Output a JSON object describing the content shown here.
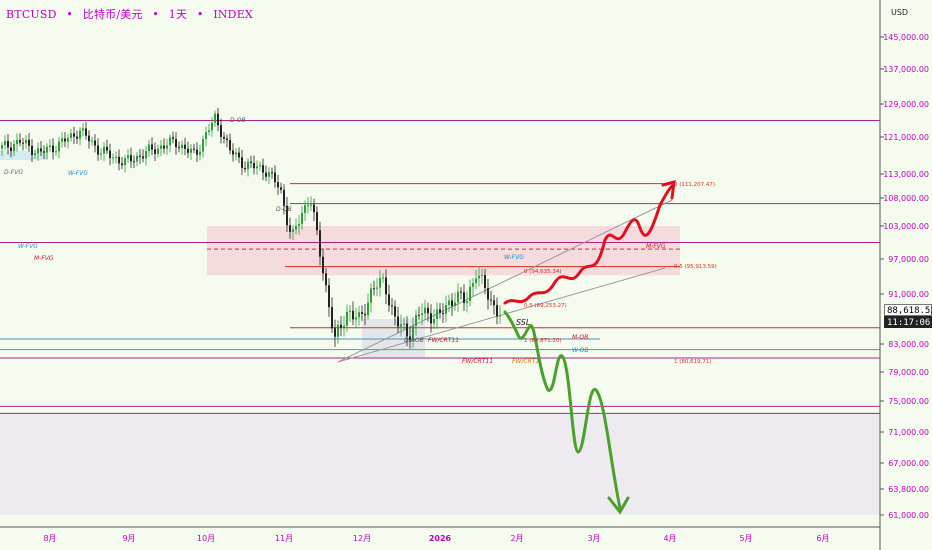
{
  "header": {
    "symbol": "BTCUSD",
    "name": "比特币/美元",
    "interval": "1天",
    "source": "INDEX",
    "separator": "•"
  },
  "currency": "USD",
  "last_price": "88,618.52",
  "countdown": "11:17:06",
  "colors": {
    "bg": "#f6fbf0",
    "up": "#2e9e3a",
    "down": "#222222",
    "bull_path": "#e01020",
    "bear_path": "#4aa02c",
    "axis_text": "#c000c0",
    "price_text": "#c000c0",
    "fib": "#d03020",
    "channel": "#999999"
  },
  "chart_data": {
    "type": "candlestick",
    "xlabels": [
      "8月",
      "9月",
      "10月",
      "11月",
      "12月",
      "2026",
      "2月",
      "3月",
      "4月",
      "5月",
      "6月"
    ],
    "ylabels": [
      "145,000.00",
      "137,000.00",
      "129,000.00",
      "121,000.00",
      "113,000.00",
      "108,000.00",
      "103,000.00",
      "97,000.00",
      "91,000.00",
      "83,000.00",
      "79,000.00",
      "75,000.00",
      "71,000.00",
      "67,000.00",
      "63,800.00",
      "61,000.00"
    ],
    "horizontal_levels": [
      125000,
      111000,
      107000,
      100000,
      95700,
      85600,
      83800,
      82200,
      81000,
      74300,
      73400
    ],
    "zones": [
      {
        "name": "D-FVG",
        "low": 116000,
        "high": 118000,
        "color": "#cfe9ef"
      },
      {
        "name": "W-FVG",
        "low": 94200,
        "high": 103000,
        "color": "#f5d5d9"
      },
      {
        "name": "box",
        "low": 81000,
        "high": 87000,
        "color": "#dfe3e8"
      },
      {
        "name": "lower",
        "low": 61000,
        "high": 73400,
        "color": "#ebe6f0"
      }
    ],
    "labels": [
      {
        "text": "D-OB",
        "color": "#555555"
      },
      {
        "text": "D-FVG",
        "color": "#4a7090"
      },
      {
        "text": "W-FVG",
        "color": "#1a90c0"
      },
      {
        "text": "D-OB",
        "color": "#555555"
      },
      {
        "text": "W-FVG",
        "color": "#1a90c0"
      },
      {
        "text": "M-FVG",
        "color": "#d01020"
      },
      {
        "text": "W-FVG",
        "color": "#1a90c0"
      },
      {
        "text": "M-FVG",
        "color": "#d01020"
      },
      {
        "text": "SSL",
        "color": "#222222"
      },
      {
        "text": "M-OB",
        "color": "#d01020"
      },
      {
        "text": "W-OB",
        "color": "#1a90c0"
      },
      {
        "text": "D-AOB",
        "color": "#555555"
      },
      {
        "text": "FW/CRT11",
        "color": "#d01020"
      },
      {
        "text": "FW/CRT11",
        "color": "#d01020"
      },
      {
        "text": "FW/CRT1",
        "color": "#e07000"
      }
    ],
    "fib_labels": [
      {
        "text": "0 (111,207.47)"
      },
      {
        "text": "0 (94,635.34)"
      },
      {
        "text": "0.5 (95,913.59)"
      },
      {
        "text": "0.5 (89,253.27)"
      },
      {
        "text": "1 (84,871.20)"
      },
      {
        "text": "1 (80,619.71)"
      }
    ]
  }
}
